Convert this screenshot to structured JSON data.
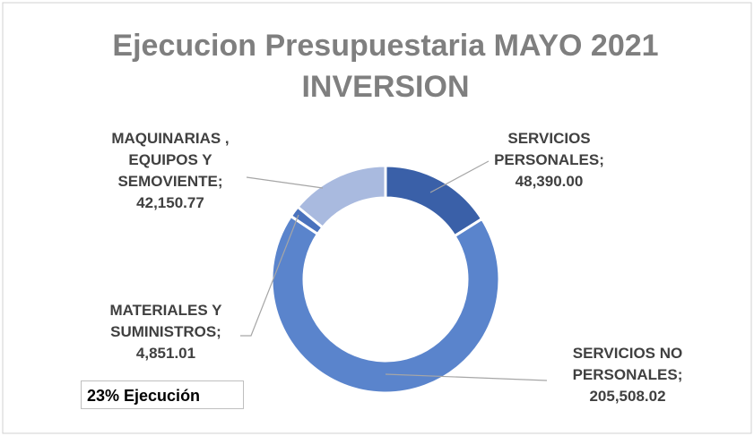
{
  "chart_data": {
    "type": "donut",
    "title": "Ejecucion Presupuestaria MAYO 2021 INVERSION",
    "categories": [
      "SERVICIOS PERSONALES;",
      "SERVICIOS NO PERSONALES;",
      "MATERIALES Y SUMINISTROS;",
      "MAQUINARIAS , EQUIPOS Y SEMOVIENTE;"
    ],
    "values": [
      48390.0,
      205508.02,
      4851.01,
      42150.77
    ],
    "value_labels": [
      "48,390.00",
      "205,508.02",
      "4,851.01",
      "42,150.77"
    ],
    "colors": [
      "#3a60a8",
      "#5a84cc",
      "#4a72bd",
      "#a9badf"
    ],
    "annotation": "23% Ejecución"
  }
}
